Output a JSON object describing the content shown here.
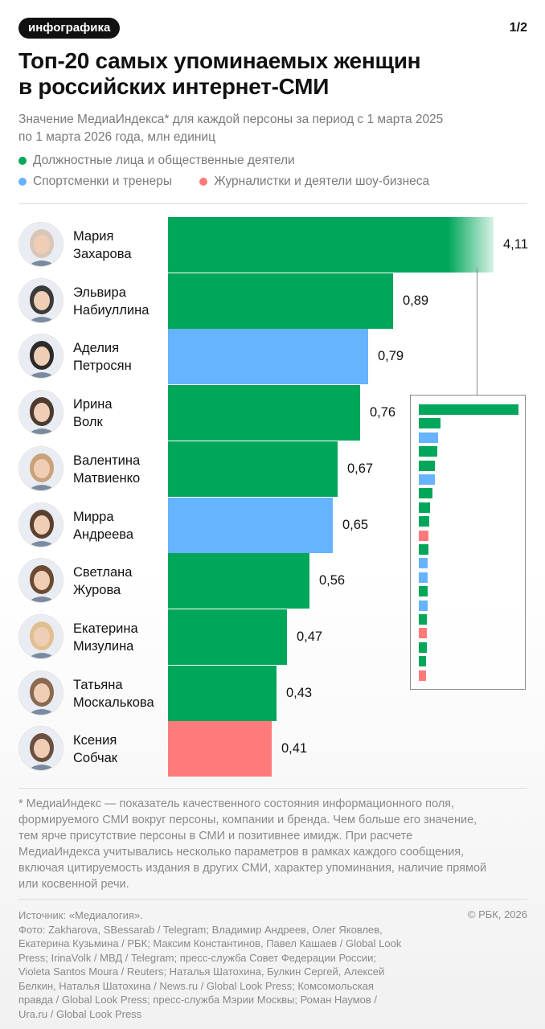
{
  "header": {
    "tag": "инфографика",
    "page": "1/2",
    "title_lines": [
      "Топ-20 самых упоминаемых женщин",
      "в российских интернет-СМИ"
    ],
    "subtitle_lines": [
      "Значение МедиаИндекса* для каждой персоны за период с 1 марта 2025",
      "по 1 марта 2026 года, млн единиц"
    ]
  },
  "legend": [
    {
      "label": "Должностные лица и общественные деятели",
      "color": "#00a65a"
    },
    {
      "label": "Спортсменки и тренеры",
      "color": "#66b3ff"
    },
    {
      "label": "Журналистки и деятели шоу-бизнеса",
      "color": "#ff7a7a"
    }
  ],
  "colors": {
    "officials": "#00a65a",
    "sports": "#66b3ff",
    "media": "#ff7a7a"
  },
  "chart_data": {
    "type": "bar",
    "orientation": "horizontal",
    "title": "Топ-20 самых упоминаемых женщин в российских интернет-СМИ",
    "unit": "млн единиц",
    "categories": [
      "Мария Захарова",
      "Эльвира Набиуллина",
      "Аделия Петросян",
      "Ирина Волк",
      "Валентина Матвиенко",
      "Мирра Андреева",
      "Светлана Журова",
      "Екатерина Мизулина",
      "Татьяна Москалькова",
      "Ксения Собчак"
    ],
    "name_lines": [
      [
        "Мария",
        "Захарова"
      ],
      [
        "Эльвира",
        "Набиуллина"
      ],
      [
        "Аделия",
        "Петросян"
      ],
      [
        "Ирина",
        "Волк"
      ],
      [
        "Валентина",
        "Матвиенко"
      ],
      [
        "Мирра",
        "Андреева"
      ],
      [
        "Светлана",
        "Журова"
      ],
      [
        "Екатерина",
        "Мизулина"
      ],
      [
        "Татьяна",
        "Москалькова"
      ],
      [
        "Ксения",
        "Собчак"
      ]
    ],
    "values": [
      4.11,
      0.89,
      0.79,
      0.76,
      0.67,
      0.65,
      0.56,
      0.47,
      0.43,
      0.41
    ],
    "value_labels": [
      "4,11",
      "0,89",
      "0,79",
      "0,76",
      "0,67",
      "0,65",
      "0,56",
      "0,47",
      "0,43",
      "0,41"
    ],
    "groups": [
      "officials",
      "officials",
      "sports",
      "officials",
      "officials",
      "sports",
      "officials",
      "officials",
      "officials",
      "media"
    ],
    "axis_break": "first bar truncated",
    "inset": {
      "description_groups": [
        "officials",
        "officials",
        "sports",
        "officials",
        "officials",
        "sports",
        "officials",
        "officials",
        "officials",
        "media",
        "officials",
        "sports",
        "sports",
        "officials",
        "sports",
        "officials",
        "media",
        "officials",
        "officials",
        "media"
      ],
      "values": [
        4.11,
        0.89,
        0.79,
        0.76,
        0.67,
        0.65,
        0.56,
        0.47,
        0.43,
        0.41,
        0.4,
        0.38,
        0.37,
        0.36,
        0.35,
        0.34,
        0.33,
        0.32,
        0.31,
        0.3
      ]
    }
  },
  "footnote_lines": [
    "* МедиаИндекс — показатель качественного состояния информационного поля,",
    "формируемого СМИ вокруг персоны, компании и бренда. Чем больше его значение,",
    "тем ярче присутствие персоны в СМИ и позитивнее имидж. При расчете",
    "МедиаИндекса учитывались несколько параметров в рамках каждого сообщения,",
    "включая цитируемость издания в других СМИ, характер упоминания, наличие прямой",
    "или косвенной речи."
  ],
  "credits_lines": [
    "Источник: «Медиалогия».",
    "Фото: Zakharova, SBessarab / Telegram; Владимир Андреев, Олег Яковлев,",
    "Екатерина Кузьмина / РБК; Максим Константинов, Павел Кашаев / Global Look",
    "Press; IrinaVolk / МВД / Telegram; пресс-служба Совет Федерации России;",
    "Violeta Santos Moura / Reuters; Наталья Шатохина, Булкин Сергей, Алексей",
    "Белкин, Наталья Шатохина / News.ru / Global Look Press; Комсомольская",
    "правда / Global Look Press; пресс-служба Мэрии Москвы; Роман Наумов /",
    "Ura.ru / Global Look Press"
  ],
  "copyright": "© РБК, 2026"
}
